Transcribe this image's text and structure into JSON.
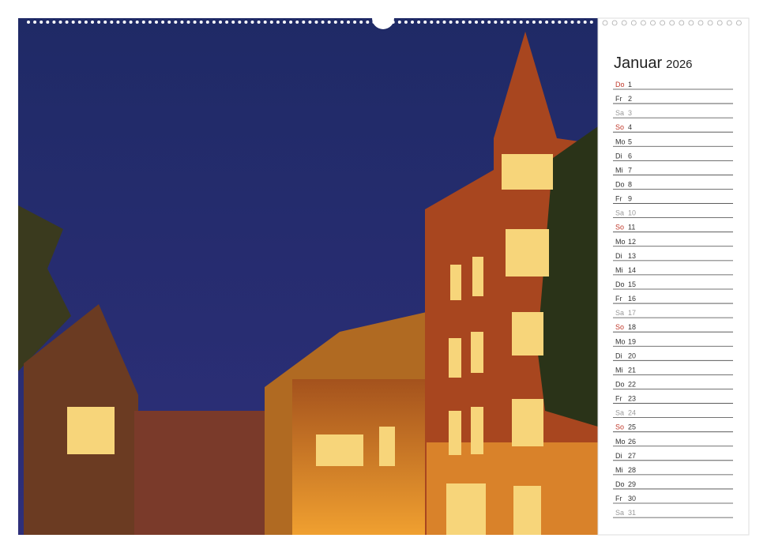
{
  "calendar": {
    "month": "Januar",
    "year": "2026",
    "days": [
      {
        "weekday": "Do",
        "day": "1",
        "color": "#c0392b"
      },
      {
        "weekday": "Fr",
        "day": "2",
        "color": "#333333"
      },
      {
        "weekday": "Sa",
        "day": "3",
        "color": "#999999"
      },
      {
        "weekday": "So",
        "day": "4",
        "color": "#c0392b"
      },
      {
        "weekday": "Mo",
        "day": "5",
        "color": "#333333"
      },
      {
        "weekday": "Di",
        "day": "6",
        "color": "#333333"
      },
      {
        "weekday": "Mi",
        "day": "7",
        "color": "#333333"
      },
      {
        "weekday": "Do",
        "day": "8",
        "color": "#333333"
      },
      {
        "weekday": "Fr",
        "day": "9",
        "color": "#333333"
      },
      {
        "weekday": "Sa",
        "day": "10",
        "color": "#999999"
      },
      {
        "weekday": "So",
        "day": "11",
        "color": "#c0392b"
      },
      {
        "weekday": "Mo",
        "day": "12",
        "color": "#333333"
      },
      {
        "weekday": "Di",
        "day": "13",
        "color": "#333333"
      },
      {
        "weekday": "Mi",
        "day": "14",
        "color": "#333333"
      },
      {
        "weekday": "Do",
        "day": "15",
        "color": "#333333"
      },
      {
        "weekday": "Fr",
        "day": "16",
        "color": "#333333"
      },
      {
        "weekday": "Sa",
        "day": "17",
        "color": "#999999"
      },
      {
        "weekday": "So",
        "day": "18",
        "color": "#c0392b"
      },
      {
        "weekday": "Mo",
        "day": "19",
        "color": "#333333"
      },
      {
        "weekday": "Di",
        "day": "20",
        "color": "#333333"
      },
      {
        "weekday": "Mi",
        "day": "21",
        "color": "#333333"
      },
      {
        "weekday": "Do",
        "day": "22",
        "color": "#333333"
      },
      {
        "weekday": "Fr",
        "day": "23",
        "color": "#333333"
      },
      {
        "weekday": "Sa",
        "day": "24",
        "color": "#999999"
      },
      {
        "weekday": "So",
        "day": "25",
        "color": "#c0392b"
      },
      {
        "weekday": "Mo",
        "day": "26",
        "color": "#333333"
      },
      {
        "weekday": "Di",
        "day": "27",
        "color": "#333333"
      },
      {
        "weekday": "Mi",
        "day": "28",
        "color": "#333333"
      },
      {
        "weekday": "Do",
        "day": "29",
        "color": "#333333"
      },
      {
        "weekday": "Fr",
        "day": "30",
        "color": "#333333"
      },
      {
        "weekday": "Sa",
        "day": "31",
        "color": "#999999"
      }
    ]
  }
}
